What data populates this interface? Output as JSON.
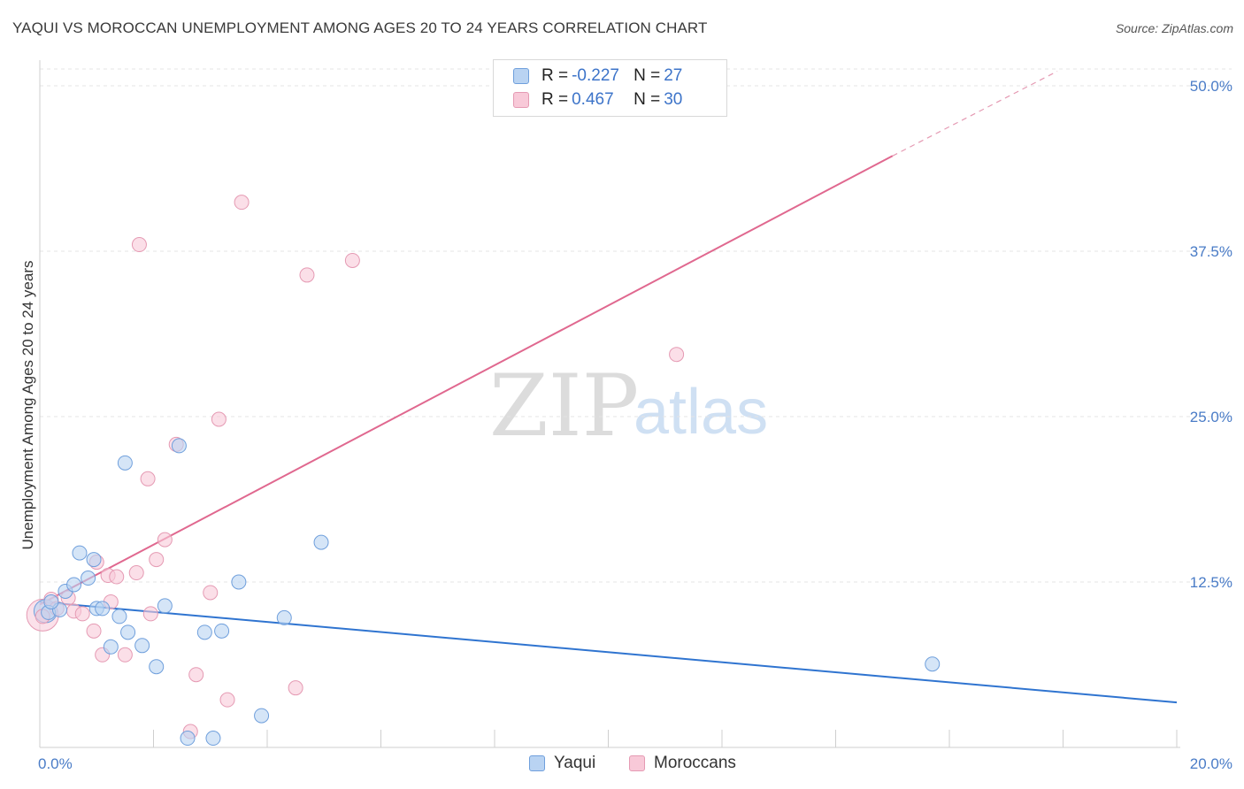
{
  "header": {
    "title": "YAQUI VS MOROCCAN UNEMPLOYMENT AMONG AGES 20 TO 24 YEARS CORRELATION CHART",
    "source": "Source: ZipAtlas.com"
  },
  "legend": {
    "rows": [
      {
        "r_label": "R = ",
        "r_value": "-0.227",
        "n_label": "N = ",
        "n_value": "27"
      },
      {
        "r_label": "R = ",
        "r_value": "0.467",
        "n_label": "N = ",
        "n_value": "30"
      }
    ]
  },
  "bottom_legend": {
    "yaqui": "Yaqui",
    "moroccans": "Moroccans"
  },
  "watermark": {
    "zip": "ZIP",
    "atlas": "atlas"
  },
  "colors": {
    "yaqui_fill": "#b9d3f2",
    "yaqui_stroke": "#6f9fdc",
    "yaqui_line": "#2f74d0",
    "moroccan_fill": "#f8c9d8",
    "moroccan_stroke": "#e59ab3",
    "moroccan_line": "#e0688f",
    "tick_label": "#4a7cc7"
  },
  "chart_data": {
    "type": "scatter",
    "title": "YAQUI VS MOROCCAN UNEMPLOYMENT AMONG AGES 20 TO 24 YEARS CORRELATION CHART",
    "xlabel": "",
    "ylabel": "Unemployment Among Ages 20 to 24 years",
    "xlim": [
      0,
      20
    ],
    "ylim": [
      0,
      50
    ],
    "x_tick_labels": [
      "0.0%",
      "20.0%"
    ],
    "y_ticks": [
      12.5,
      25.0,
      37.5,
      50.0
    ],
    "y_tick_labels": [
      "12.5%",
      "25.0%",
      "37.5%",
      "50.0%"
    ],
    "grid": true,
    "legend_position": "top-center",
    "series": [
      {
        "name": "Yaqui",
        "x": [
          0.15,
          0.35,
          0.45,
          0.6,
          0.7,
          0.85,
          0.95,
          1.0,
          1.1,
          1.25,
          1.4,
          1.5,
          1.55,
          1.8,
          2.05,
          2.2,
          2.45,
          2.6,
          2.9,
          3.05,
          3.2,
          3.5,
          3.9,
          4.3,
          4.95,
          15.7,
          0.2
        ],
        "y": [
          10.2,
          10.4,
          11.8,
          12.3,
          14.7,
          12.8,
          14.2,
          10.5,
          10.5,
          7.6,
          9.9,
          21.5,
          8.7,
          7.7,
          6.1,
          10.7,
          22.8,
          0.7,
          8.7,
          0.7,
          8.8,
          12.5,
          2.4,
          9.8,
          15.5,
          6.3,
          11.0
        ],
        "r": "-0.227",
        "n": "27",
        "trend": {
          "x": [
            0,
            20
          ],
          "y": [
            11.0,
            3.4
          ]
        }
      },
      {
        "name": "Moroccans",
        "x": [
          0.05,
          0.2,
          0.5,
          0.6,
          0.75,
          0.95,
          1.0,
          1.1,
          1.2,
          1.25,
          1.35,
          1.5,
          1.7,
          1.75,
          1.95,
          2.05,
          2.2,
          2.4,
          2.65,
          2.75,
          3.0,
          3.15,
          3.3,
          3.55,
          4.5,
          4.7,
          5.5,
          11.2,
          0.3,
          1.9
        ],
        "y": [
          9.9,
          11.2,
          11.3,
          10.3,
          10.1,
          8.8,
          14.0,
          7.0,
          13.0,
          11.0,
          12.9,
          7.0,
          13.2,
          38.0,
          10.1,
          14.2,
          15.7,
          22.9,
          1.2,
          5.5,
          11.7,
          24.8,
          3.6,
          41.2,
          4.5,
          35.7,
          36.8,
          29.7,
          10.5,
          20.3
        ],
        "r": "0.467",
        "n": "30",
        "trend": {
          "x": [
            0,
            15
          ],
          "y": [
            10.8,
            44.7
          ]
        },
        "trend_extension": {
          "x": [
            15,
            17.9
          ],
          "y": [
            44.7,
            51.1
          ]
        }
      }
    ]
  }
}
